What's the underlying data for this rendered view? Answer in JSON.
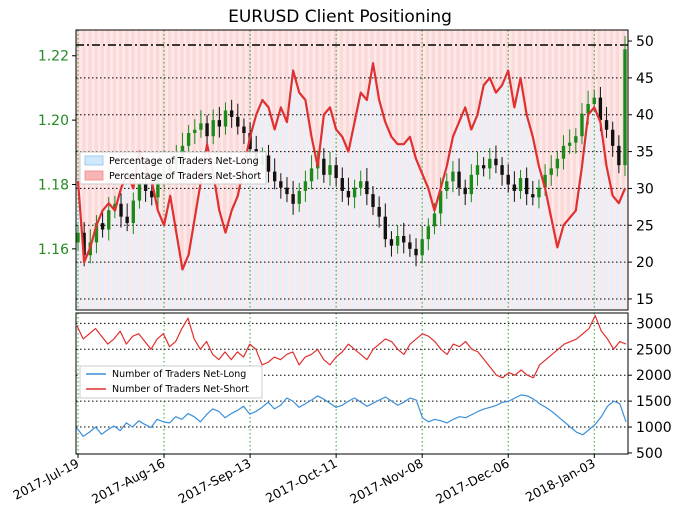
{
  "chart_data": [
    {
      "type": "candlestick+line",
      "title": "EURUSD Client Positioning",
      "dates": [
        "2017-Jul-19",
        "2017-Aug-16",
        "2017-Sep-13",
        "2017-Oct-11",
        "2017-Nov-08",
        "2017-Dec-06",
        "2018-Jan-03"
      ],
      "y_left": {
        "ylim": [
          1.141,
          1.228
        ],
        "ticks": [
          "1.16",
          "1.18",
          "1.20",
          "1.22"
        ],
        "tick_values": [
          1.16,
          1.18,
          1.2,
          1.22
        ]
      },
      "y_right": {
        "ylim": [
          13.5,
          51.5
        ],
        "ticks": [
          "15",
          "20",
          "25",
          "30",
          "35",
          "40",
          "45",
          "50"
        ],
        "tick_values": [
          15,
          20,
          25,
          30,
          35,
          40,
          45,
          50
        ]
      },
      "threshold_line": 50,
      "legend": [
        "Percentage of Traders Net-Long",
        "Percentage of Traders Net-Short"
      ],
      "price_close": [
        1.165,
        1.158,
        1.162,
        1.168,
        1.166,
        1.172,
        1.174,
        1.17,
        1.168,
        1.175,
        1.18,
        1.178,
        1.176,
        1.182,
        1.184,
        1.186,
        1.189,
        1.192,
        1.196,
        1.197,
        1.199,
        1.195,
        1.2,
        1.198,
        1.203,
        1.201,
        1.198,
        1.196,
        1.191,
        1.186,
        1.189,
        1.184,
        1.181,
        1.179,
        1.177,
        1.174,
        1.178,
        1.181,
        1.185,
        1.188,
        1.183,
        1.186,
        1.182,
        1.178,
        1.176,
        1.179,
        1.181,
        1.177,
        1.173,
        1.17,
        1.163,
        1.161,
        1.164,
        1.162,
        1.16,
        1.158,
        1.163,
        1.167,
        1.171,
        1.178,
        1.181,
        1.184,
        1.179,
        1.177,
        1.183,
        1.186,
        1.185,
        1.188,
        1.186,
        1.183,
        1.18,
        1.178,
        1.182,
        1.177,
        1.176,
        1.179,
        1.183,
        1.185,
        1.188,
        1.192,
        1.193,
        1.195,
        1.202,
        1.205,
        1.207,
        1.2,
        1.197,
        1.192,
        1.186,
        1.222
      ],
      "net_short_pct": [
        31,
        20,
        22,
        25,
        27,
        28,
        27,
        30,
        32,
        30,
        35,
        33,
        31,
        27,
        25,
        29,
        24,
        19,
        21,
        26,
        31,
        36,
        32,
        27,
        24,
        27,
        29,
        33,
        37,
        40,
        42,
        41,
        38,
        41,
        39,
        46,
        43,
        42,
        37,
        33,
        40,
        41,
        38,
        37,
        35,
        39,
        43,
        42,
        47,
        42,
        39,
        37,
        36,
        36,
        37,
        34,
        32,
        30,
        27,
        30,
        33,
        37,
        39,
        41,
        38,
        40,
        44,
        45,
        43,
        44,
        46,
        41,
        45,
        40,
        37,
        33,
        30,
        26,
        22,
        25,
        26,
        27,
        33,
        40,
        41,
        39,
        33,
        29,
        28,
        30
      ],
      "net_long_pct": [
        69,
        80,
        78,
        75,
        73,
        72,
        73,
        70,
        68,
        70,
        65,
        67,
        69,
        73,
        75,
        71,
        76,
        81,
        79,
        74,
        69,
        64,
        68,
        73,
        76,
        73,
        71,
        67,
        63,
        60,
        58,
        59,
        62,
        59,
        61,
        54,
        57,
        58,
        63,
        67,
        60,
        59,
        62,
        63,
        65,
        61,
        57,
        58,
        53,
        58,
        61,
        63,
        64,
        64,
        63,
        66,
        68,
        70,
        73,
        70,
        67,
        63,
        61,
        59,
        62,
        60,
        56,
        55,
        57,
        56,
        54,
        59,
        55,
        60,
        63,
        67,
        70,
        74,
        78,
        75,
        74,
        73,
        67,
        60,
        59,
        61,
        67,
        71,
        72,
        70
      ]
    },
    {
      "type": "line",
      "y_right": {
        "ylim": [
          480,
          3200
        ],
        "ticks": [
          "500",
          "1000",
          "1500",
          "2000",
          "2500",
          "3000"
        ],
        "tick_values": [
          500,
          1000,
          1500,
          2000,
          2500,
          3000
        ]
      },
      "legend": [
        "Number of Traders Net-Long",
        "Number of Traders Net-Short"
      ],
      "series": [
        {
          "name": "Number of Traders Net-Long",
          "color": "#3a8fd9",
          "values": [
            980,
            820,
            900,
            1000,
            860,
            950,
            1020,
            930,
            1080,
            1000,
            1120,
            1050,
            990,
            1150,
            1100,
            1080,
            1200,
            1150,
            1260,
            1200,
            1100,
            1240,
            1350,
            1300,
            1180,
            1260,
            1320,
            1400,
            1250,
            1300,
            1380,
            1480,
            1350,
            1420,
            1560,
            1500,
            1380,
            1450,
            1520,
            1600,
            1540,
            1460,
            1380,
            1420,
            1500,
            1560,
            1480,
            1400,
            1460,
            1520,
            1580,
            1500,
            1420,
            1480,
            1560,
            1520,
            1180,
            1100,
            1150,
            1120,
            1080,
            1150,
            1200,
            1180,
            1240,
            1300,
            1350,
            1380,
            1420,
            1480,
            1500,
            1560,
            1620,
            1600,
            1540,
            1450,
            1380,
            1300,
            1200,
            1100,
            1000,
            900,
            850,
            950,
            1050,
            1200,
            1400,
            1500,
            1450,
            1100
          ]
        },
        {
          "name": "Number of Traders Net-Short",
          "color": "#e03030",
          "values": [
            2950,
            2700,
            2800,
            2900,
            2750,
            2600,
            2700,
            2850,
            2600,
            2750,
            2800,
            2650,
            2500,
            2700,
            2800,
            2550,
            2650,
            2900,
            3100,
            2700,
            2500,
            2650,
            2400,
            2300,
            2450,
            2300,
            2450,
            2350,
            2600,
            2500,
            2200,
            2250,
            2350,
            2300,
            2400,
            2450,
            2200,
            2350,
            2400,
            2500,
            2300,
            2200,
            2350,
            2450,
            2600,
            2500,
            2400,
            2300,
            2500,
            2600,
            2700,
            2650,
            2500,
            2400,
            2600,
            2700,
            2800,
            2750,
            2650,
            2500,
            2400,
            2600,
            2550,
            2650,
            2500,
            2450,
            2300,
            2150,
            2000,
            1950,
            2050,
            2000,
            2100,
            2000,
            1950,
            2200,
            2300,
            2400,
            2500,
            2600,
            2650,
            2700,
            2800,
            2900,
            3150,
            2850,
            2700,
            2500,
            2650,
            2600
          ]
        }
      ]
    }
  ]
}
